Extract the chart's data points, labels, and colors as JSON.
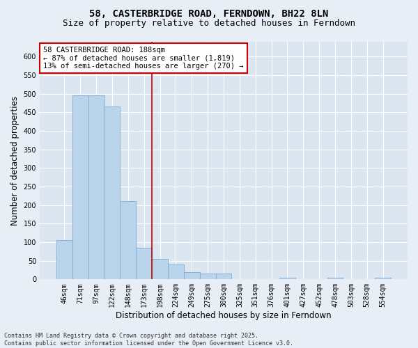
{
  "title_line1": "58, CASTERBRIDGE ROAD, FERNDOWN, BH22 8LN",
  "title_line2": "Size of property relative to detached houses in Ferndown",
  "xlabel": "Distribution of detached houses by size in Ferndown",
  "ylabel": "Number of detached properties",
  "categories": [
    "46sqm",
    "71sqm",
    "97sqm",
    "122sqm",
    "148sqm",
    "173sqm",
    "198sqm",
    "224sqm",
    "249sqm",
    "275sqm",
    "300sqm",
    "325sqm",
    "351sqm",
    "376sqm",
    "401sqm",
    "427sqm",
    "452sqm",
    "478sqm",
    "503sqm",
    "528sqm",
    "554sqm"
  ],
  "values": [
    105,
    495,
    495,
    465,
    210,
    85,
    55,
    40,
    20,
    15,
    15,
    0,
    0,
    0,
    5,
    0,
    0,
    5,
    0,
    0,
    5
  ],
  "bar_color": "#bad4ec",
  "bar_edgecolor": "#7aadd4",
  "vline_x": 6.0,
  "vline_color": "#cc0000",
  "annotation_text": "58 CASTERBRIDGE ROAD: 188sqm\n← 87% of detached houses are smaller (1,819)\n13% of semi-detached houses are larger (270) →",
  "annotation_box_color": "#ffffff",
  "annotation_box_edgecolor": "#cc0000",
  "ylim": [
    0,
    640
  ],
  "yticks": [
    0,
    50,
    100,
    150,
    200,
    250,
    300,
    350,
    400,
    450,
    500,
    550,
    600
  ],
  "bg_color": "#e8eef5",
  "plot_bg_color": "#dce6f0",
  "footer_text": "Contains HM Land Registry data © Crown copyright and database right 2025.\nContains public sector information licensed under the Open Government Licence v3.0.",
  "title_fontsize": 10,
  "subtitle_fontsize": 9,
  "tick_fontsize": 7,
  "label_fontsize": 8.5,
  "annotation_fontsize": 7.5,
  "footer_fontsize": 6
}
